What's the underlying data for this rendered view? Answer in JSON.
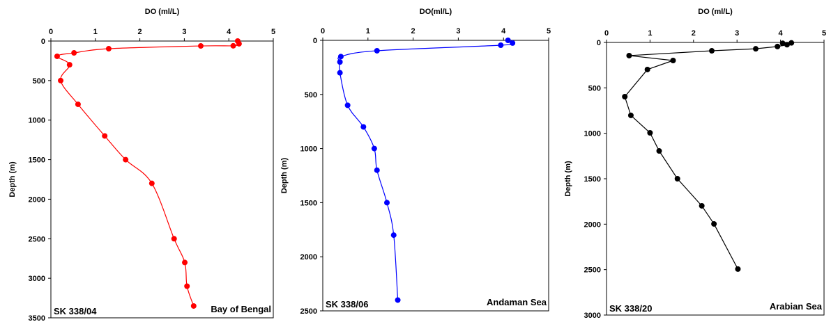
{
  "chart_data": [
    {
      "type": "line",
      "smooth": true,
      "x_label": "DO (ml/L)",
      "y_label": "Depth (m)",
      "y_inverted": true,
      "x_axis_position": "top",
      "annotations": [
        "SK 338/04",
        "Bay of Bengal"
      ],
      "xlim": [
        0,
        5
      ],
      "xticks": [
        0,
        1,
        2,
        3,
        4,
        5
      ],
      "ylim": [
        0,
        3500
      ],
      "yticks": [
        0,
        500,
        1000,
        1500,
        2000,
        2500,
        3000,
        3500
      ],
      "series": [
        {
          "color": "#ff0000",
          "x": [
            4.2,
            4.23,
            4.1,
            3.37,
            1.3,
            0.52,
            0.14,
            0.42,
            0.22,
            0.61,
            1.21,
            1.68,
            2.27,
            2.77,
            3.01,
            3.06,
            3.21
          ],
          "values": [
            0,
            35,
            60,
            62,
            97,
            150,
            193,
            300,
            500,
            800,
            1200,
            1500,
            1800,
            2500,
            2800,
            3100,
            3350
          ]
        }
      ]
    },
    {
      "type": "line",
      "smooth": true,
      "x_label": "DO(ml/L)",
      "y_label": "Depth (m)",
      "y_inverted": true,
      "x_axis_position": "top",
      "annotations": [
        "SK 338/06",
        "Andaman Sea"
      ],
      "xlim": [
        0,
        5
      ],
      "xticks": [
        0,
        1,
        2,
        3,
        4,
        5
      ],
      "ylim": [
        0,
        2500
      ],
      "yticks": [
        0,
        500,
        1000,
        1500,
        2000,
        2500
      ],
      "series": [
        {
          "color": "#0000ff",
          "x": [
            4.1,
            4.2,
            3.94,
            1.2,
            0.4,
            0.38,
            0.38,
            0.55,
            0.9,
            1.14,
            1.2,
            1.42,
            1.57,
            1.66
          ],
          "values": [
            0,
            25,
            45,
            96,
            150,
            200,
            300,
            600,
            800,
            1000,
            1200,
            1500,
            1800,
            2400
          ]
        }
      ]
    },
    {
      "type": "line",
      "smooth": false,
      "x_label": "DO (ml/L)",
      "y_label": "Depth (m)",
      "y_inverted": true,
      "x_axis_position": "top",
      "annotations": [
        "SK 338/20",
        "Arabian Sea"
      ],
      "xlim": [
        0,
        5
      ],
      "xticks": [
        0,
        1,
        2,
        3,
        4,
        5
      ],
      "ylim": [
        0,
        3000
      ],
      "yticks": [
        0,
        500,
        1000,
        1500,
        2000,
        2500,
        3000
      ],
      "series": [
        {
          "color": "#000000",
          "x": [
            4.25,
            4.05,
            4.15,
            3.93,
            3.43,
            2.42,
            0.52,
            1.53,
            0.94,
            0.42,
            0.56,
            1.0,
            1.21,
            1.63,
            2.19,
            2.47,
            3.02
          ],
          "values": [
            5,
            10,
            25,
            45,
            70,
            92,
            145,
            199,
            298,
            597,
            803,
            995,
            1194,
            1500,
            1798,
            1997,
            2494
          ]
        }
      ]
    }
  ]
}
